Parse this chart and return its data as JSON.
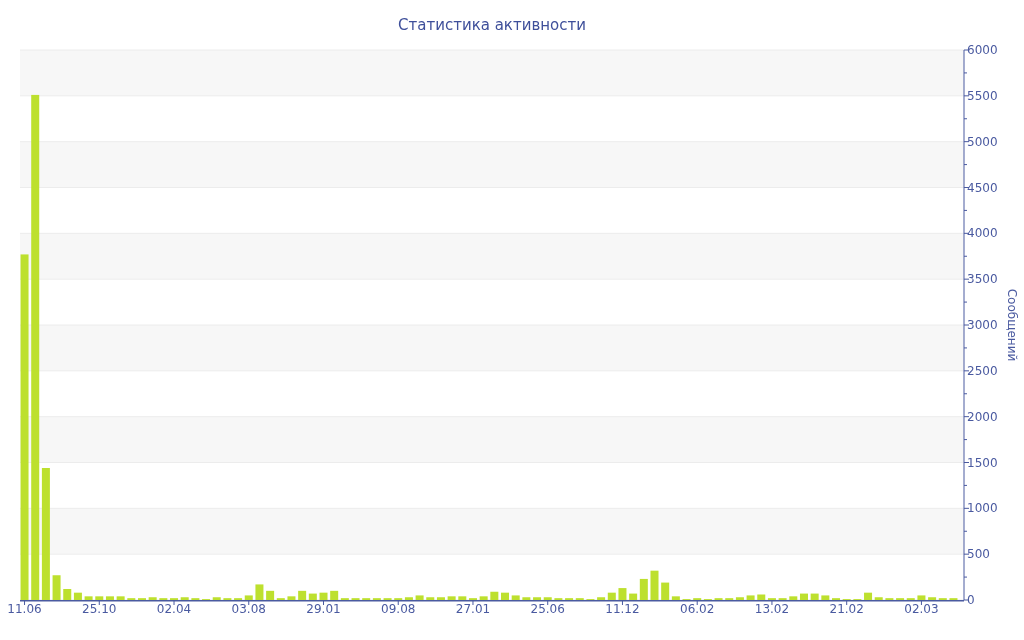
{
  "chart_data": {
    "type": "bar",
    "title": "Статистика активности",
    "ylabel": "Сообщений",
    "categories": [
      "11.06",
      null,
      null,
      null,
      null,
      null,
      null,
      "25.10",
      null,
      null,
      null,
      null,
      null,
      null,
      "02.04",
      null,
      null,
      null,
      null,
      null,
      null,
      "03.08",
      null,
      null,
      null,
      null,
      null,
      null,
      "29.01",
      null,
      null,
      null,
      null,
      null,
      null,
      "09.08",
      null,
      null,
      null,
      null,
      null,
      null,
      "27.01",
      null,
      null,
      null,
      null,
      null,
      null,
      "25.06",
      null,
      null,
      null,
      null,
      null,
      null,
      "11.12",
      null,
      null,
      null,
      null,
      null,
      null,
      "06.02",
      null,
      null,
      null,
      null,
      null,
      null,
      "13.02",
      null,
      null,
      null,
      null,
      null,
      null,
      "21.02",
      null,
      null,
      null,
      null,
      null,
      null,
      "02.03",
      null,
      null,
      null
    ],
    "values": [
      3770,
      5510,
      1440,
      270,
      120,
      80,
      40,
      40,
      40,
      40,
      20,
      20,
      30,
      20,
      20,
      30,
      20,
      10,
      30,
      20,
      20,
      50,
      170,
      100,
      20,
      40,
      100,
      70,
      80,
      100,
      20,
      20,
      20,
      20,
      20,
      20,
      30,
      50,
      30,
      30,
      40,
      40,
      20,
      40,
      90,
      80,
      50,
      30,
      30,
      30,
      20,
      20,
      20,
      10,
      30,
      80,
      130,
      70,
      230,
      320,
      190,
      40,
      10,
      20,
      10,
      20,
      20,
      30,
      50,
      60,
      20,
      20,
      40,
      70,
      70,
      50,
      20,
      10,
      10,
      80,
      30,
      20,
      20,
      20,
      50,
      30,
      20,
      20
    ],
    "color": "#bde02e",
    "ylim": [
      0,
      6000
    ],
    "yticks": [
      0,
      500,
      1000,
      1500,
      2000,
      2500,
      3000,
      3500,
      4000,
      4500,
      5000,
      5500,
      6000
    ],
    "grid": "y"
  }
}
